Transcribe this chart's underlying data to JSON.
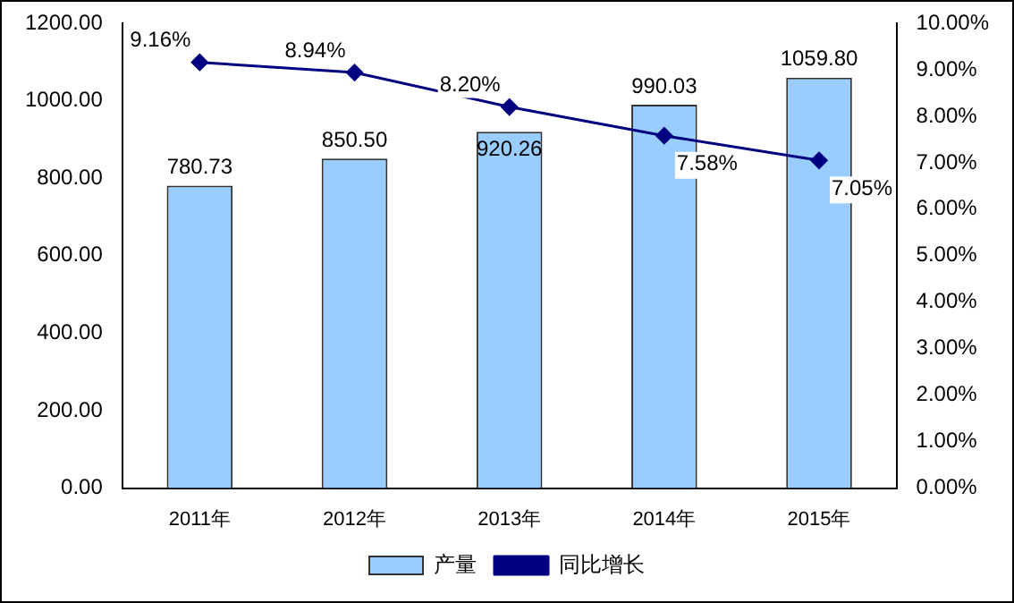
{
  "chart_data": {
    "type": "bar",
    "categories": [
      "2011年",
      "2012年",
      "2013年",
      "2014年",
      "2015年"
    ],
    "series": [
      {
        "name": "产量",
        "color": "#99ccff",
        "values": [
          780.73,
          850.5,
          920.26,
          990.03,
          1059.8
        ],
        "value_labels": [
          "780.73",
          "850.50",
          "920.26",
          "990.03",
          "1059.80"
        ]
      },
      {
        "name": "同比增长",
        "type": "line",
        "axis": "y2",
        "color": "#000080",
        "marker": "diamond",
        "values": [
          9.16,
          8.94,
          8.2,
          7.58,
          7.05
        ],
        "value_labels": [
          "9.16%",
          "8.94%",
          "8.20%",
          "7.58%",
          "7.05%"
        ]
      }
    ],
    "ylim": [
      0,
      1200
    ],
    "yticks": [
      {
        "value": 0,
        "label": "0.00"
      },
      {
        "value": 200,
        "label": "200.00"
      },
      {
        "value": 400,
        "label": "400.00"
      },
      {
        "value": 600,
        "label": "600.00"
      },
      {
        "value": 800,
        "label": "800.00"
      },
      {
        "value": 1000,
        "label": "1000.00"
      },
      {
        "value": 1200,
        "label": "1200.00"
      }
    ],
    "y2lim": [
      0,
      10
    ],
    "y2ticks": [
      {
        "value": 0,
        "label": "0.00%"
      },
      {
        "value": 1,
        "label": "1.00%"
      },
      {
        "value": 2,
        "label": "2.00%"
      },
      {
        "value": 3,
        "label": "3.00%"
      },
      {
        "value": 4,
        "label": "4.00%"
      },
      {
        "value": 5,
        "label": "5.00%"
      },
      {
        "value": 6,
        "label": "6.00%"
      },
      {
        "value": 7,
        "label": "7.00%"
      },
      {
        "value": 8,
        "label": "8.00%"
      },
      {
        "value": 9,
        "label": "9.00%"
      },
      {
        "value": 10,
        "label": "10.00%"
      }
    ],
    "grid": false,
    "legend": "bottom"
  }
}
